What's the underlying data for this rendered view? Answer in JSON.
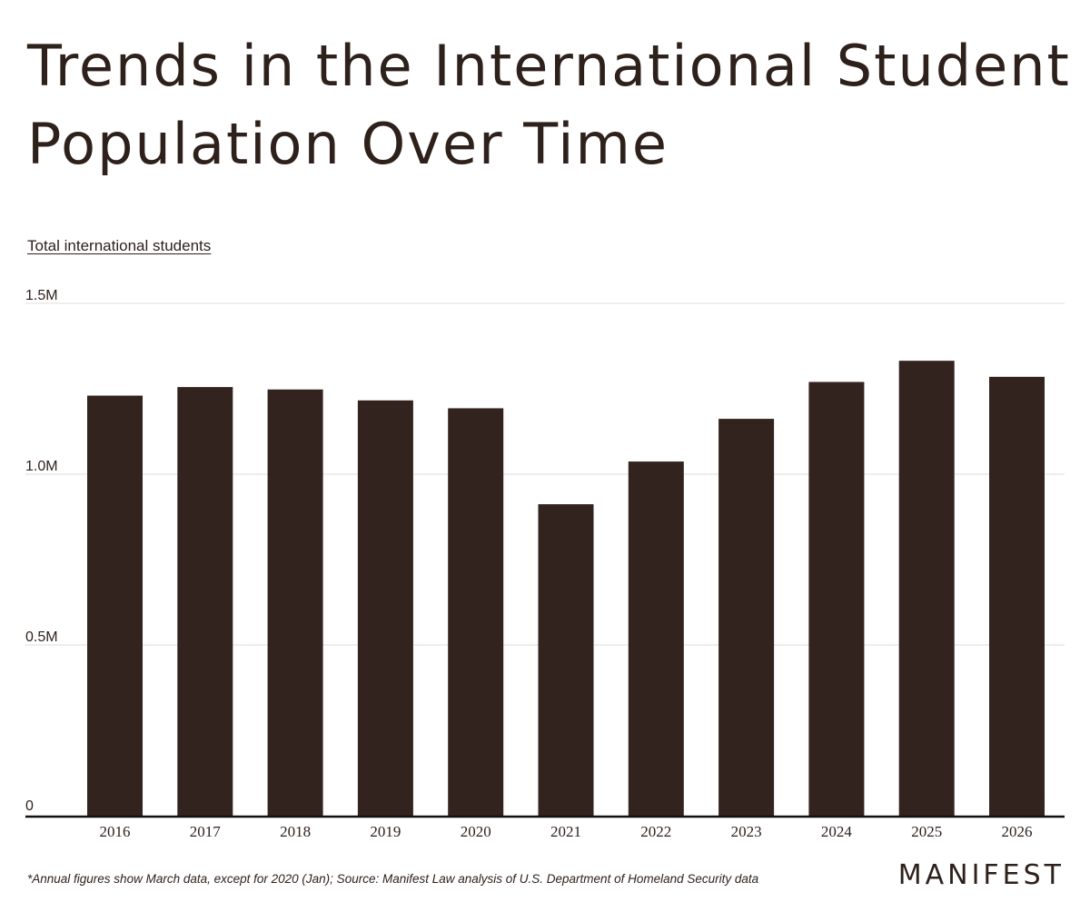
{
  "page": {
    "title": "Trends in the International Student Population Over Time",
    "footnote": "*Annual figures show March data, except for 2020 (Jan); Source: Manifest Law analysis of U.S. Department of Homeland Security data",
    "brand": "MANIFEST"
  },
  "colors": {
    "bar": "#33231e",
    "text": "#2e211c",
    "grid": "#dddddd",
    "baseline": "#111111"
  },
  "chart_data": {
    "type": "bar",
    "title": "Trends in the International Student Population Over Time",
    "ylabel": "Total international students",
    "xlabel": "",
    "categories": [
      "2016",
      "2017",
      "2018",
      "2019",
      "2020",
      "2021",
      "2022",
      "2023",
      "2024",
      "2025",
      "2026"
    ],
    "values": [
      1230000,
      1255000,
      1248000,
      1216000,
      1193000,
      912000,
      1037000,
      1162000,
      1270000,
      1332000,
      1285000
    ],
    "ylim": [
      0,
      1500000
    ],
    "yticks": [
      0,
      500000,
      1000000,
      1500000
    ],
    "ytick_labels": [
      "0",
      "0.5M",
      "1.0M",
      "1.5M"
    ],
    "grid": true,
    "legend": "none"
  }
}
